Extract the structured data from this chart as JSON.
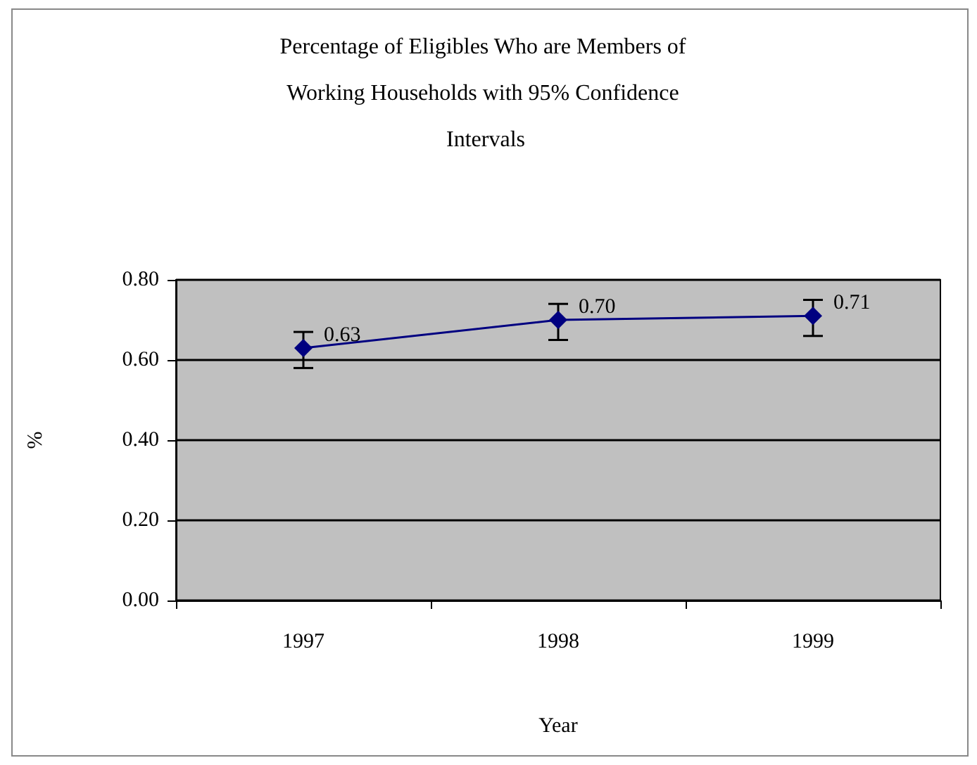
{
  "chart_data": {
    "type": "line",
    "title": "Percentage of Eligibles Who are Members of Working Households with 95% Confidence Intervals",
    "xlabel": "Year",
    "ylabel": "%",
    "categories": [
      "1997",
      "1998",
      "1999"
    ],
    "series": [
      {
        "color": "#000080",
        "values": [
          0.63,
          0.7,
          0.71
        ],
        "value_labels": [
          "0.63",
          "0.70",
          "0.71"
        ],
        "errors": [
          [
            0.58,
            0.67
          ],
          [
            0.65,
            0.74
          ],
          [
            0.66,
            0.75
          ]
        ]
      }
    ],
    "ylim": [
      0,
      0.8
    ],
    "yticks": [
      {
        "value": 0,
        "label": "0.00"
      },
      {
        "value": 0.2,
        "label": "0.20"
      },
      {
        "value": 0.4,
        "label": "0.40"
      },
      {
        "value": 0.6,
        "label": "0.60"
      },
      {
        "value": 0.8,
        "label": "0.80"
      }
    ],
    "grid": "y",
    "marker": "diamond"
  }
}
